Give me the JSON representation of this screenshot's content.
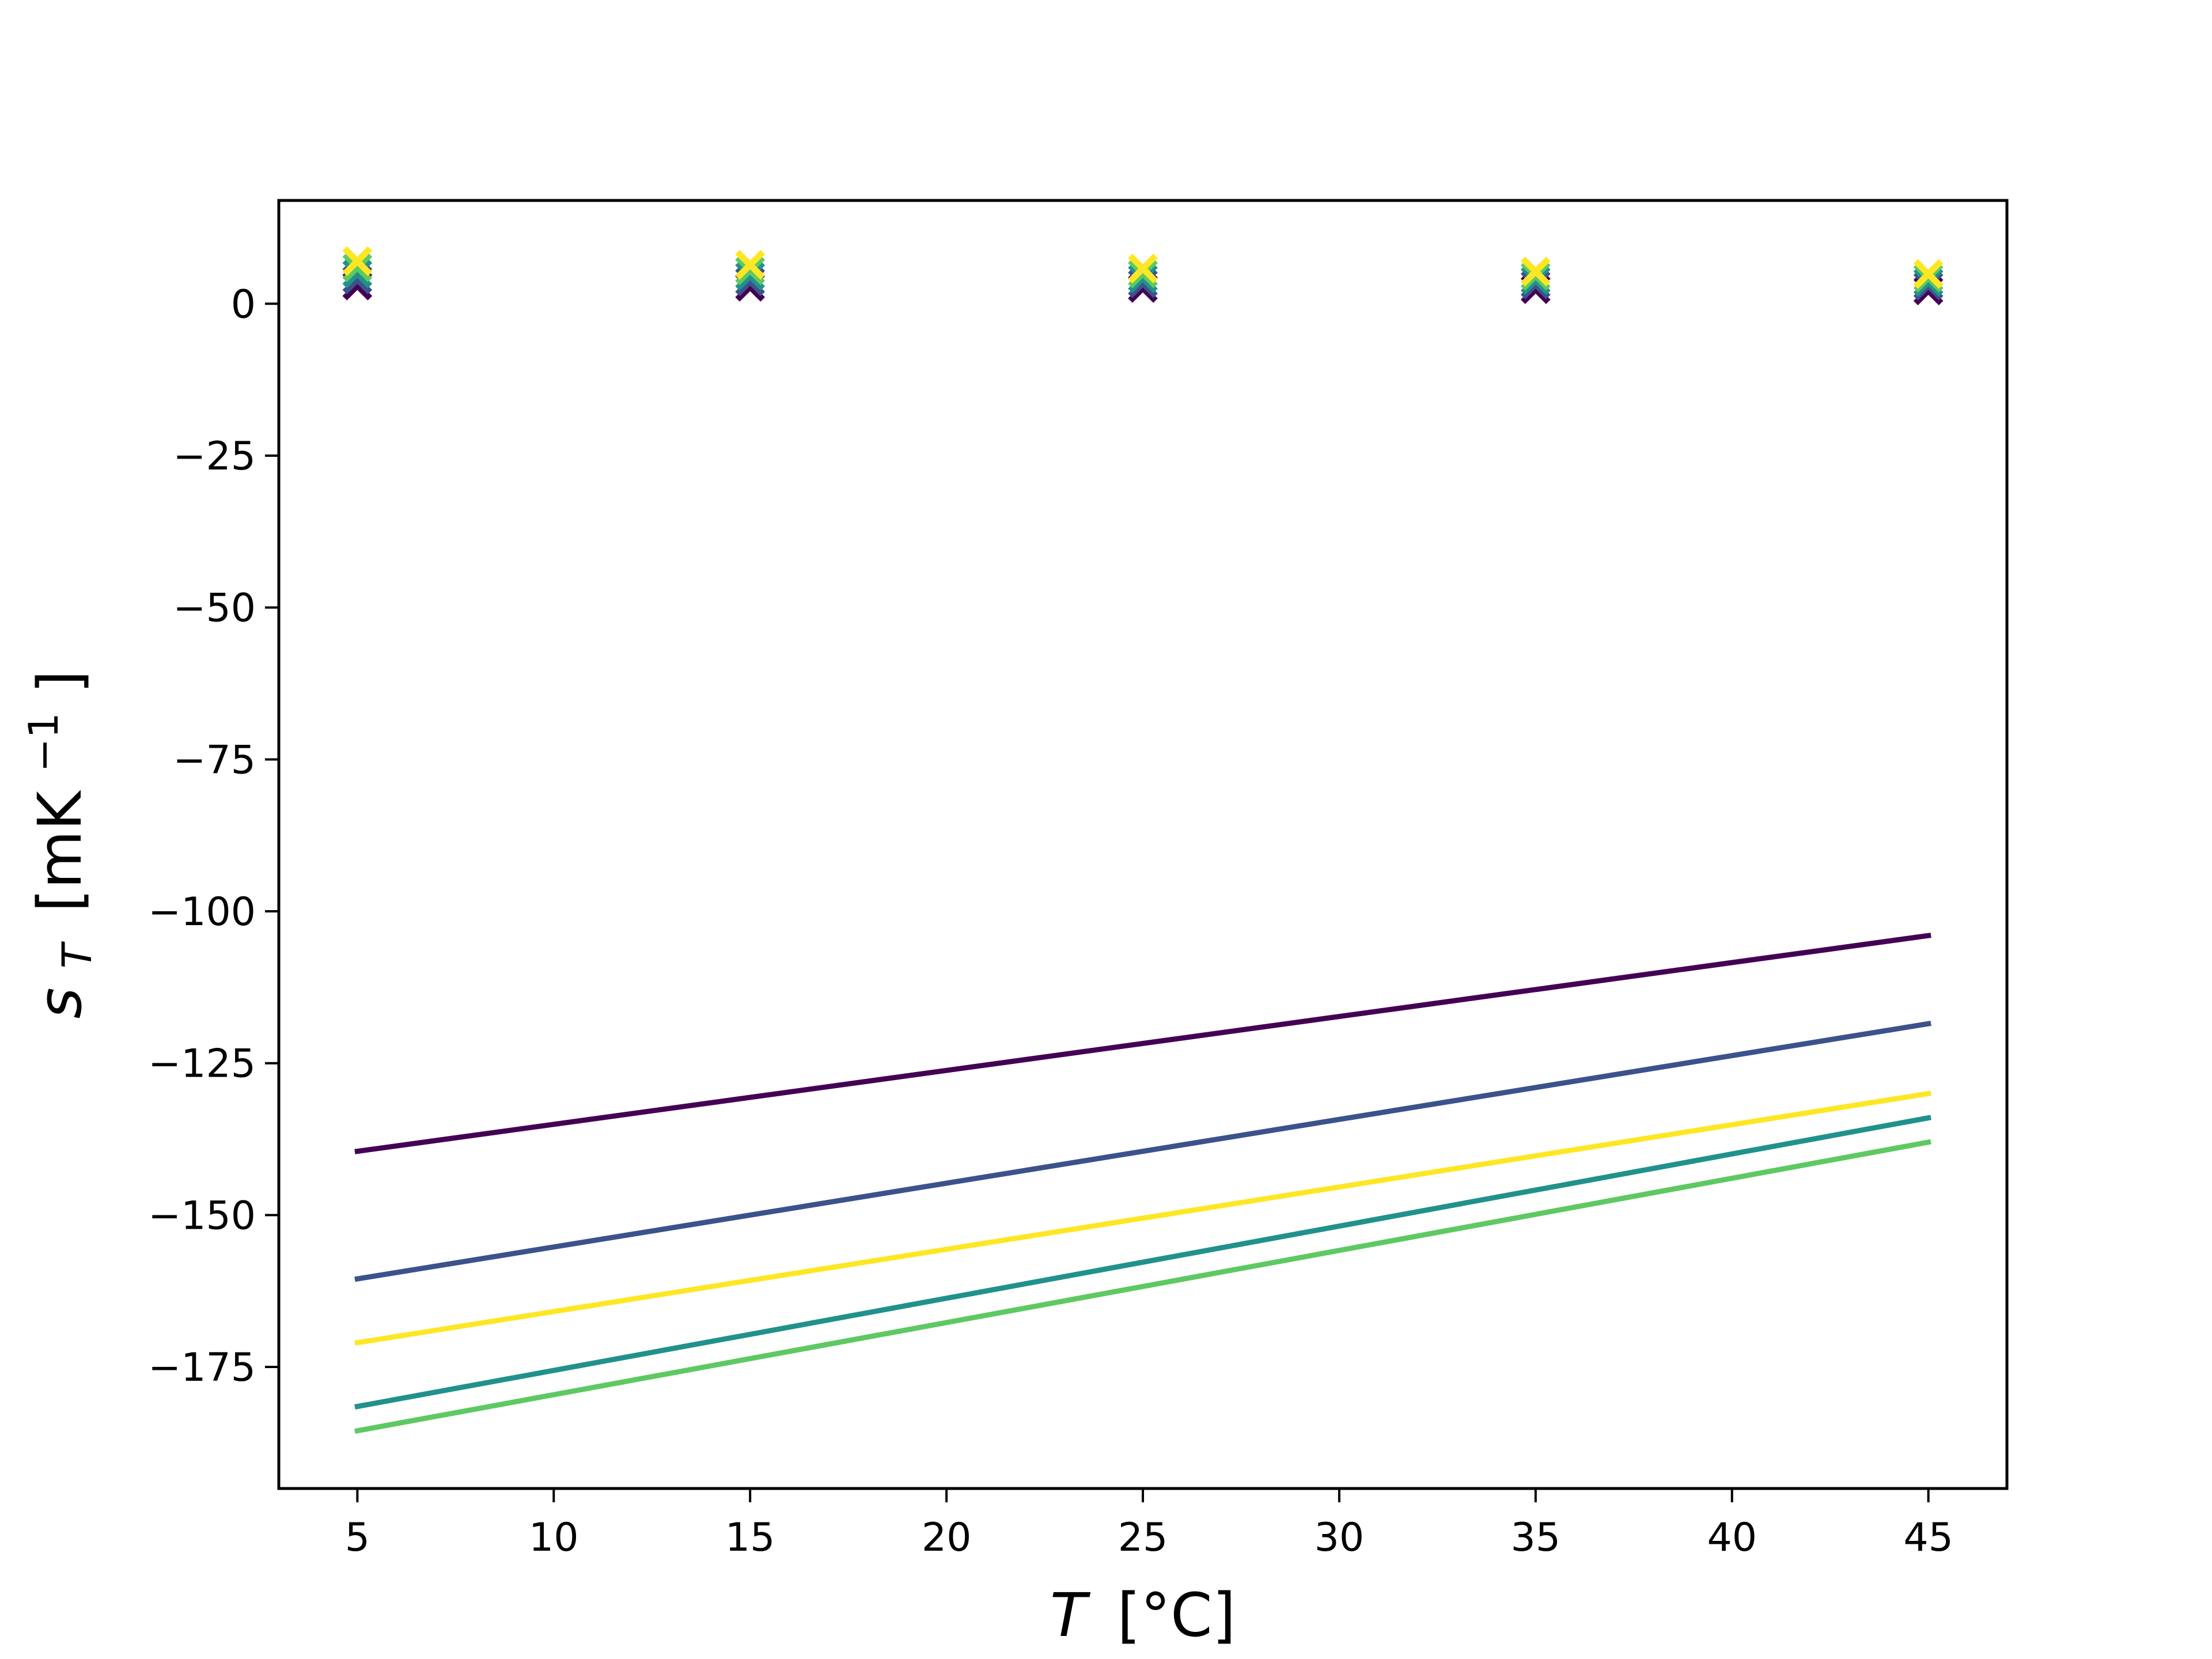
{
  "chart_data": {
    "type": "line",
    "title": "",
    "xlabel": {
      "symbol": "T",
      "unit": "[°C]"
    },
    "ylabel": {
      "symbol": "s",
      "subscript": "T",
      "unit_open": "[mK",
      "unit_exp": "−1",
      "unit_close": "]"
    },
    "xlim": [
      3,
      47
    ],
    "ylim": [
      -195,
      17
    ],
    "xticks": [
      5,
      10,
      15,
      20,
      25,
      30,
      35,
      40,
      45
    ],
    "xtick_labels": [
      "5",
      "10",
      "15",
      "20",
      "25",
      "30",
      "35",
      "40",
      "45"
    ],
    "yticks": [
      0,
      -25,
      -50,
      -75,
      -100,
      -125,
      -150,
      -175
    ],
    "ytick_labels": [
      "0",
      "−25",
      "−50",
      "−75",
      "−100",
      "−125",
      "−150",
      "−175"
    ],
    "grid": false,
    "legend": "none",
    "series": [
      {
        "color": "#440154",
        "line": {
          "x": [
            5,
            45
          ],
          "y": [
            -139.5,
            -104
          ]
        },
        "markers": {
          "x": [
            5,
            15,
            25,
            35,
            45
          ],
          "y": [
            3.0,
            2.8,
            2.6,
            2.4,
            2.2
          ]
        }
      },
      {
        "color": "#3b528b",
        "line": {
          "x": [
            5,
            45
          ],
          "y": [
            -160.5,
            -118.5
          ]
        },
        "markers": {
          "x": [
            5,
            15,
            25,
            35,
            45
          ],
          "y": [
            4.0,
            3.7,
            3.4,
            3.2,
            3.0
          ]
        }
      },
      {
        "color": "#21918c",
        "line": {
          "x": [
            5,
            45
          ],
          "y": [
            -181.5,
            -134
          ]
        },
        "markers": {
          "x": [
            5,
            15,
            25,
            35,
            45
          ],
          "y": [
            5.0,
            4.6,
            4.2,
            3.9,
            3.6
          ]
        }
      },
      {
        "color": "#5ec962",
        "line": {
          "x": [
            5,
            45
          ],
          "y": [
            -185.5,
            -138
          ]
        },
        "markers": {
          "x": [
            5,
            15,
            25,
            35,
            45
          ],
          "y": [
            6.0,
            5.5,
            5.0,
            4.6,
            4.3
          ]
        }
      },
      {
        "color": "#fde725",
        "line": {
          "x": [
            5,
            45
          ],
          "y": [
            -171,
            -130
          ]
        },
        "markers": {
          "x": [
            5,
            15,
            25,
            35,
            45
          ],
          "y": [
            7.0,
            6.4,
            5.8,
            5.3,
            4.9
          ]
        }
      }
    ]
  }
}
